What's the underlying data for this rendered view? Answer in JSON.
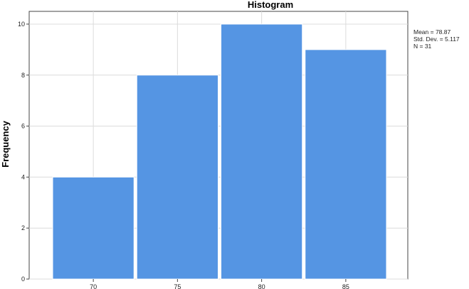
{
  "chart_data": {
    "type": "bar",
    "title": "Histogram",
    "xlabel": "",
    "ylabel": "Frequency",
    "categories": [
      "70",
      "75",
      "80",
      "85"
    ],
    "values": [
      4,
      8,
      10,
      9
    ],
    "ylim": [
      0,
      10.5
    ],
    "yticks": [
      "0",
      "2",
      "4",
      "6",
      "8",
      "10"
    ],
    "xticks": [
      "70",
      "75",
      "80",
      "85"
    ],
    "grid": true,
    "legend": "none",
    "bar_color": "#5595e3",
    "stats": {
      "mean": "Mean = 78.87",
      "std_dev": "Std. Dev. = 5.117",
      "n": "N = 31"
    }
  }
}
